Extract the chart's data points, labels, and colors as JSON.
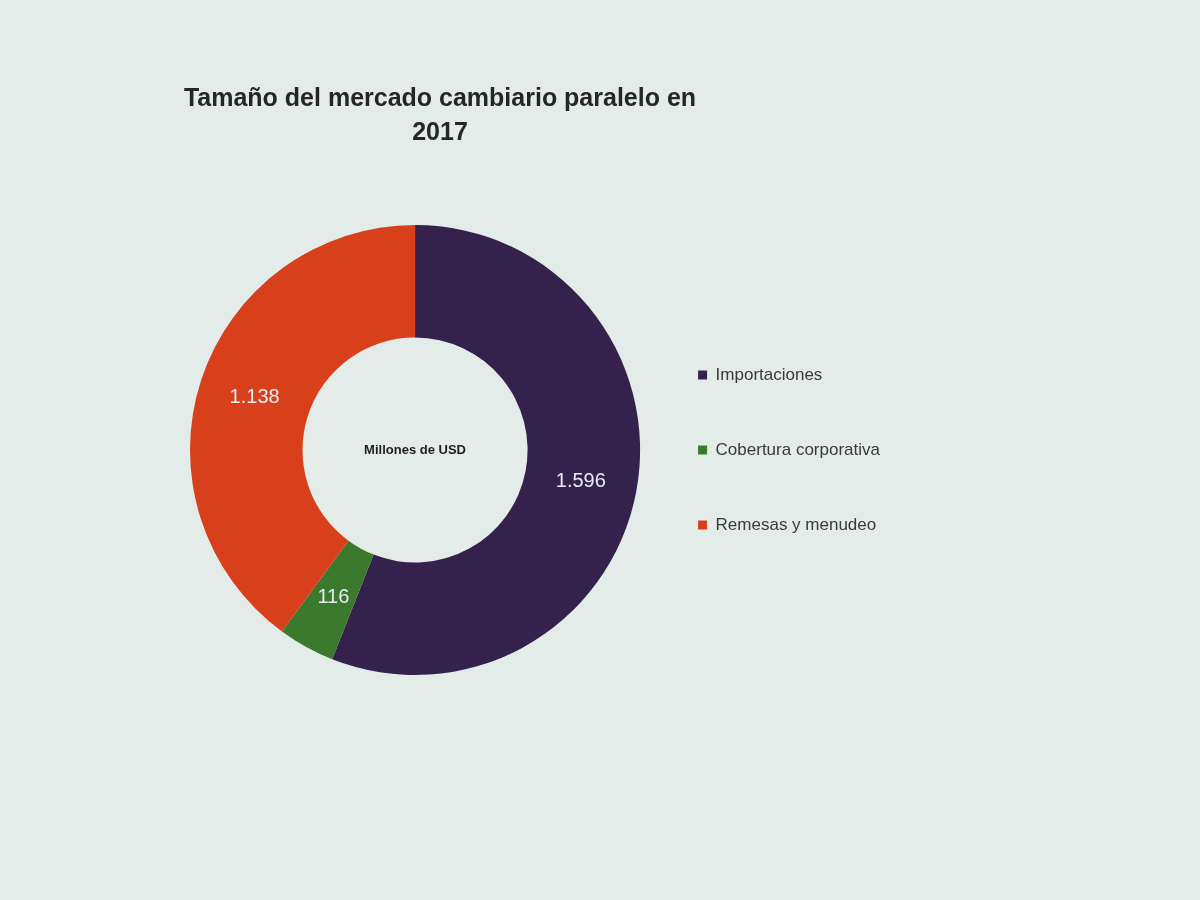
{
  "chart_data": {
    "type": "donut",
    "title": "Tamaño del mercado cambiario paralelo en 2017",
    "categories": [
      "Importaciones",
      "Cobertura corporativa",
      "Remesas y menudeo"
    ],
    "values": [
      1596,
      116,
      1138
    ],
    "colors": [
      "#35224c",
      "#3b7a2c",
      "#d8401c"
    ],
    "value_labels": [
      "1.596",
      "116",
      "1.138"
    ],
    "annotations": [
      "Millones de USD"
    ],
    "legend": "right"
  }
}
